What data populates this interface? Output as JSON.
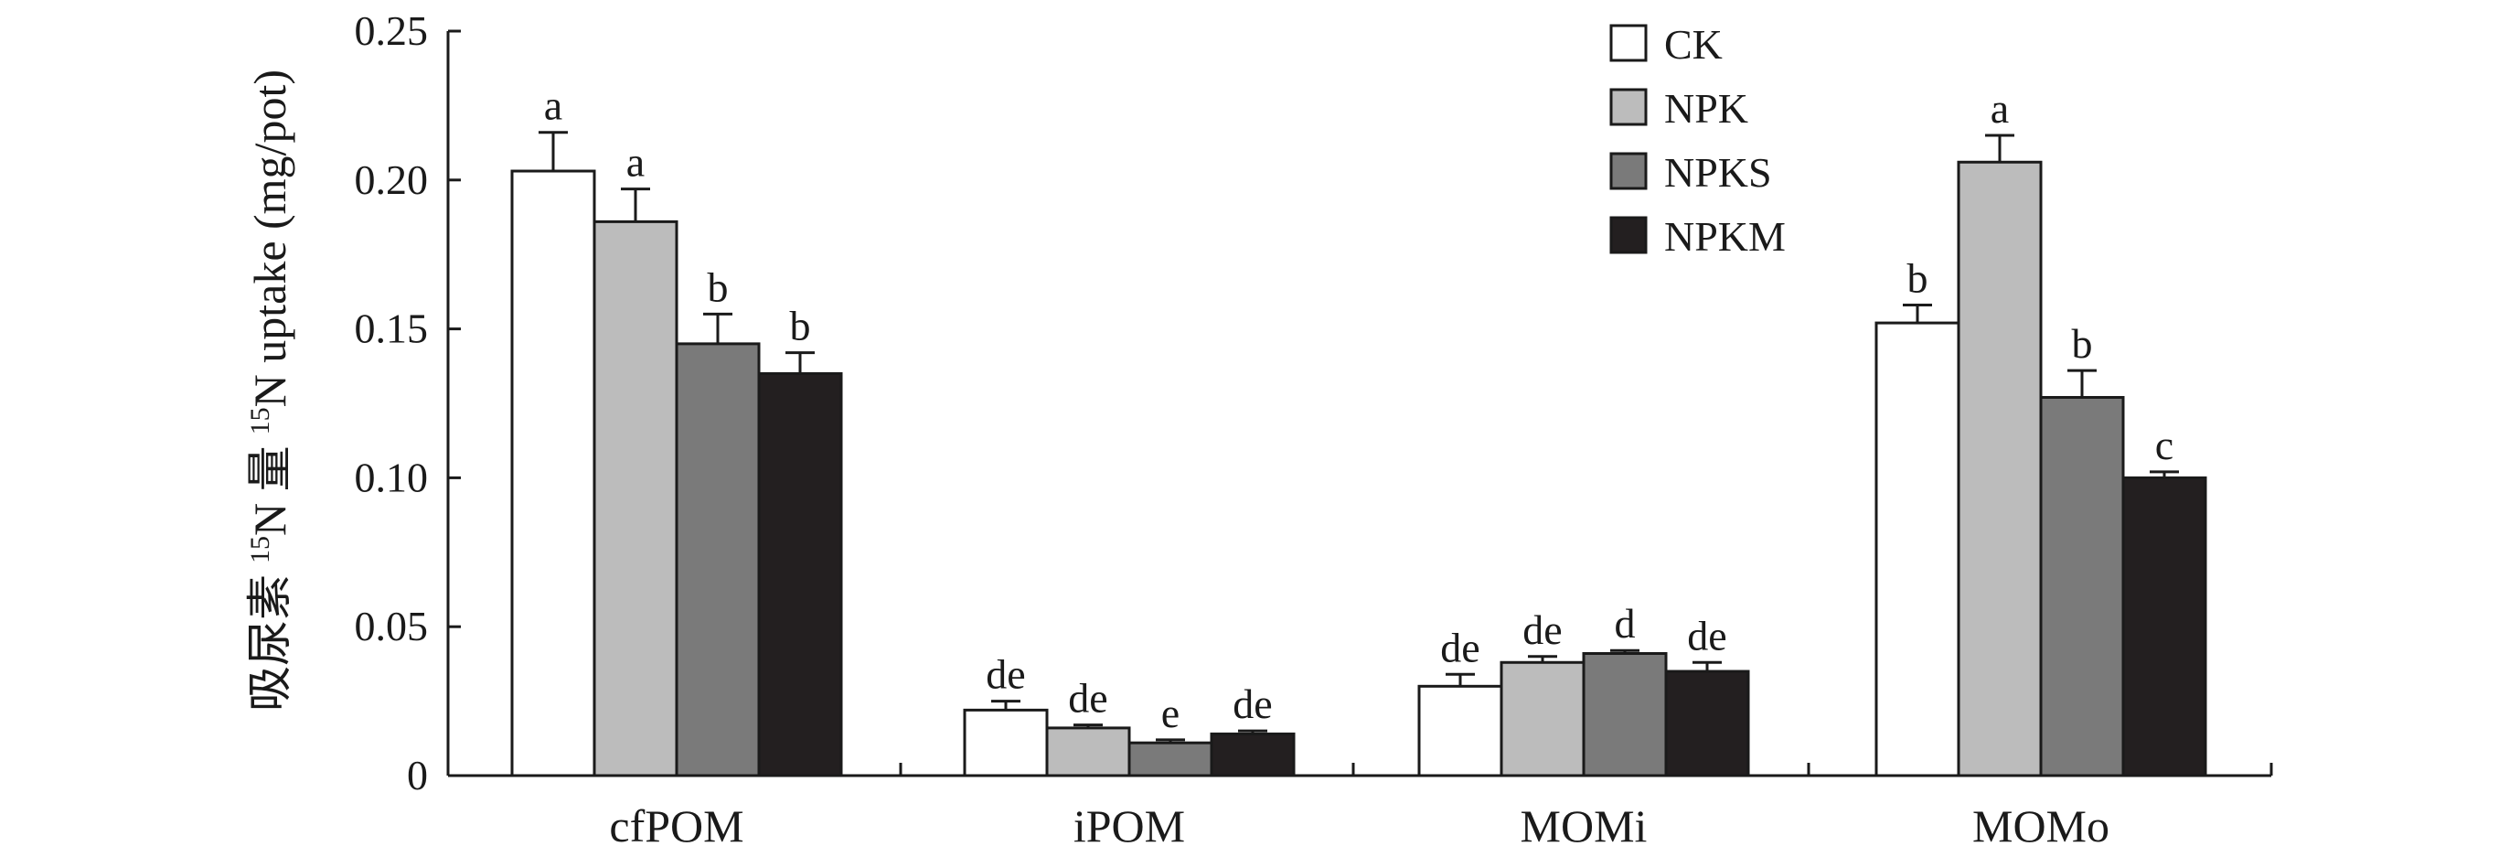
{
  "chart_data": {
    "type": "bar",
    "ylabel_prefix": "吸尿素",
    "ylabel_sup": "15",
    "ylabel_suffix": "N 量",
    "ylabel_sup2": "15",
    "ylabel_rest": "N uptake (mg/pot)",
    "categories": [
      "cfPOM",
      "iPOM",
      "MOMi",
      "MOMo"
    ],
    "ylim": [
      0,
      0.25
    ],
    "yticks": [
      {
        "value": 0,
        "label": "0"
      },
      {
        "value": 0.05,
        "label": "0.05"
      },
      {
        "value": 0.1,
        "label": "0.10"
      },
      {
        "value": 0.15,
        "label": "0.15"
      },
      {
        "value": 0.2,
        "label": "0.20"
      },
      {
        "value": 0.25,
        "label": "0.25"
      }
    ],
    "legend_position": "top-right",
    "grid": false,
    "series": [
      {
        "name": "CK",
        "color": "#ffffff",
        "values": [
          0.203,
          0.022,
          0.03,
          0.152
        ],
        "errors": [
          0.013,
          0.003,
          0.004,
          0.006
        ],
        "letters": [
          "a",
          "de",
          "de",
          "b"
        ]
      },
      {
        "name": "NPK",
        "color": "#bcbcbc",
        "values": [
          0.186,
          0.016,
          0.038,
          0.206
        ],
        "errors": [
          0.011,
          0.001,
          0.002,
          0.009
        ],
        "letters": [
          "a",
          "de",
          "de",
          "a"
        ]
      },
      {
        "name": "NPKS",
        "color": "#7a7a7a",
        "values": [
          0.145,
          0.011,
          0.041,
          0.127
        ],
        "errors": [
          0.01,
          0.001,
          0.001,
          0.009
        ],
        "letters": [
          "b",
          "e",
          "d",
          "b"
        ]
      },
      {
        "name": "NPKM",
        "color": "#231f20",
        "values": [
          0.135,
          0.014,
          0.035,
          0.1
        ],
        "errors": [
          0.007,
          0.001,
          0.003,
          0.002
        ],
        "letters": [
          "b",
          "de",
          "de",
          "c"
        ]
      }
    ]
  }
}
